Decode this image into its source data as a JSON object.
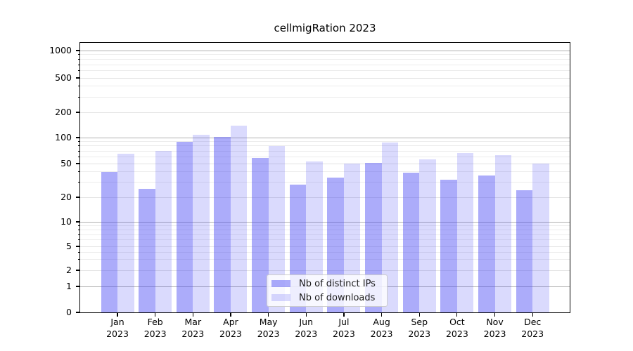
{
  "chart_data": {
    "type": "bar",
    "title": "cellmigRation 2023",
    "categories": [
      "Jan",
      "Feb",
      "Mar",
      "Apr",
      "May",
      "Jun",
      "Jul",
      "Aug",
      "Sep",
      "Oct",
      "Nov",
      "Dec"
    ],
    "category_year": "2023",
    "series": [
      {
        "name": "Nb of distinct IPs",
        "color": "rgba(72,72,245,0.45)",
        "values": [
          40,
          25,
          90,
          102,
          58,
          28,
          34,
          51,
          39,
          32,
          36,
          24
        ]
      },
      {
        "name": "Nb of downloads",
        "color": "rgba(72,72,245,0.2)",
        "values": [
          65,
          70,
          108,
          140,
          80,
          53,
          50,
          88,
          56,
          66,
          63,
          50
        ]
      }
    ],
    "y_ticks": [
      1000,
      500,
      200,
      100,
      50,
      20,
      10,
      5,
      2,
      1,
      0
    ],
    "yscale": "symlog",
    "ylim": [
      0,
      1200
    ],
    "grid": true,
    "legend_position": "lower center",
    "colors": {
      "major_grid": "#b0b0b0",
      "labeled_grid": "#e2e2e2",
      "minor_grid": "#ececec",
      "axis": "#000000"
    }
  }
}
